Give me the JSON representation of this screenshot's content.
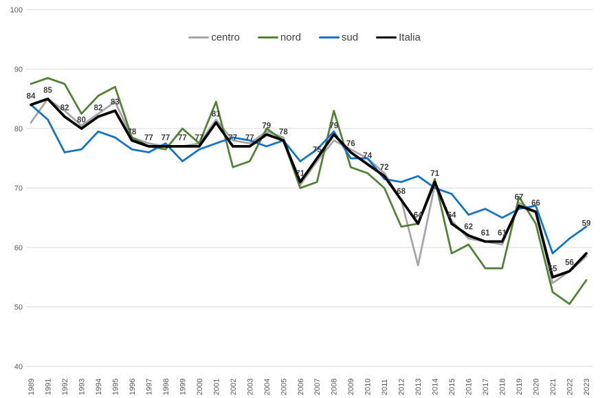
{
  "chart_data": {
    "type": "line",
    "title": "",
    "xlabel": "",
    "ylabel": "",
    "ylim": [
      40,
      100
    ],
    "ytick_step": 10,
    "y_ticks": [
      "100",
      "90",
      "80",
      "70",
      "60",
      "50",
      "40"
    ],
    "grid": "horizontal-only",
    "legend_position": "top-center",
    "x": [
      1989,
      1991,
      1992,
      1993,
      1994,
      1995,
      1996,
      1997,
      1998,
      1999,
      2000,
      2001,
      2002,
      2003,
      2004,
      2005,
      2006,
      2007,
      2008,
      2009,
      2010,
      2011,
      2012,
      2013,
      2014,
      2015,
      2016,
      2017,
      2018,
      2019,
      2020,
      2021,
      2022,
      2023
    ],
    "series": [
      {
        "name": "centro",
        "color": "#A6A6A6",
        "values": [
          81,
          85,
          83,
          80.5,
          82.5,
          84.5,
          78.5,
          77.5,
          77,
          77,
          77.5,
          81.5,
          78,
          77.5,
          79.5,
          78.5,
          70.5,
          74.5,
          78,
          76.5,
          75,
          72.5,
          68,
          57,
          70.5,
          64.5,
          61.5,
          61,
          60.5,
          67.5,
          66,
          54,
          56,
          58.5
        ]
      },
      {
        "name": "nord",
        "color": "#548235",
        "values": [
          87.5,
          88.5,
          87.5,
          82.5,
          85.5,
          87,
          78.5,
          77,
          76.5,
          80,
          77.5,
          84.5,
          73.5,
          74.5,
          80,
          78,
          70,
          71,
          83,
          73.5,
          72.5,
          70,
          63.5,
          64,
          71.5,
          59,
          60.5,
          56.5,
          56.5,
          68.5,
          64,
          52.5,
          50.5,
          54.5
        ]
      },
      {
        "name": "sud",
        "color": "#1274C6",
        "values": [
          84,
          81.5,
          76,
          76.5,
          79.5,
          78.5,
          76.5,
          76,
          77.5,
          74.5,
          76.5,
          77.5,
          78.5,
          78,
          77,
          78,
          74.5,
          76.5,
          79.5,
          75,
          75,
          71.5,
          71,
          72,
          70,
          69,
          65.5,
          66.5,
          65,
          66.5,
          67,
          59,
          61.5,
          63.5
        ]
      },
      {
        "name": "Italia",
        "color": "#000000",
        "values": [
          84,
          85,
          82,
          80,
          82,
          83,
          78,
          77,
          77,
          77,
          77,
          81,
          77,
          77,
          79,
          78,
          71,
          75,
          79,
          76,
          74,
          72,
          68,
          64,
          71,
          64,
          62,
          61,
          61,
          67,
          66,
          55,
          56,
          59
        ]
      }
    ],
    "data_labels": {
      "series": "Italia",
      "values": [
        "84",
        "85",
        "82",
        "80",
        "82",
        "83",
        "78",
        "77",
        "77",
        "77",
        "77",
        "81",
        "77",
        "77",
        "79",
        "78",
        "71",
        "75",
        "79",
        "76",
        "74",
        "72",
        "68",
        "64",
        "71",
        "64",
        "62",
        "61",
        "61",
        "67",
        "66",
        "55",
        "56",
        "59"
      ]
    },
    "legend": [
      {
        "label": "centro",
        "color": "#A6A6A6"
      },
      {
        "label": "nord",
        "color": "#548235"
      },
      {
        "label": "sud",
        "color": "#1274C6"
      },
      {
        "label": "Italia",
        "color": "#000000"
      }
    ]
  }
}
